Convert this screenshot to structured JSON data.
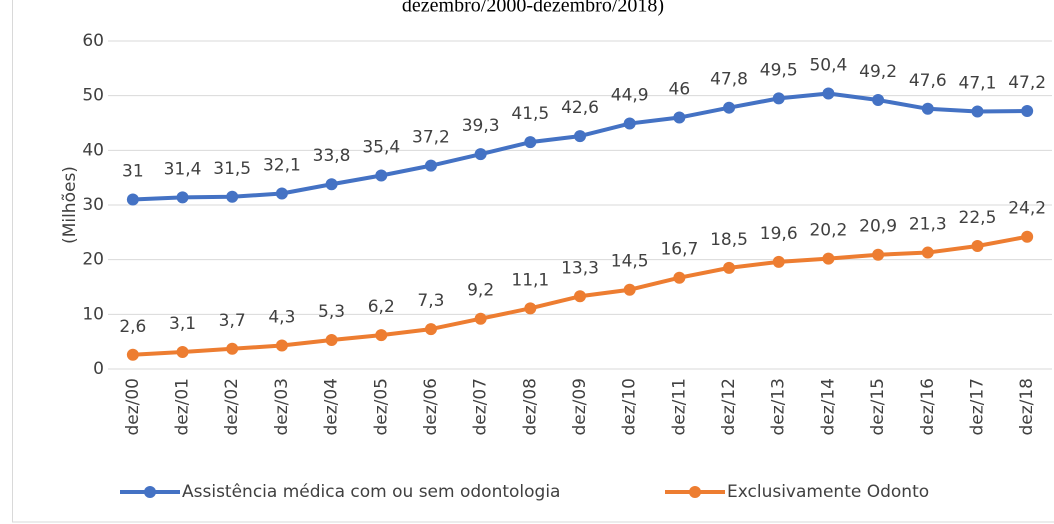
{
  "chart_data": {
    "type": "line",
    "title": "dezembro/2000-dezembro/2018)",
    "ylabel": "(Milhões)",
    "categories": [
      "dez/00",
      "dez/01",
      "dez/02",
      "dez/03",
      "dez/04",
      "dez/05",
      "dez/06",
      "dez/07",
      "dez/08",
      "dez/09",
      "dez/10",
      "dez/11",
      "dez/12",
      "dez/13",
      "dez/14",
      "dez/15",
      "dez/16",
      "dez/17",
      "dez/18"
    ],
    "series": [
      {
        "name": "Assistência médica com ou sem odontologia",
        "color": "#4472c4",
        "values": [
          31,
          31.4,
          31.5,
          32.1,
          33.8,
          35.4,
          37.2,
          39.3,
          41.5,
          42.6,
          44.9,
          46,
          47.8,
          49.5,
          50.4,
          49.2,
          47.6,
          47.1,
          47.2
        ],
        "value_labels": [
          "31",
          "31,4",
          "31,5",
          "32,1",
          "33,8",
          "35,4",
          "37,2",
          "39,3",
          "41,5",
          "42,6",
          "44,9",
          "46",
          "47,8",
          "49,5",
          "50,4",
          "49,2",
          "47,6",
          "47,1",
          "47,2"
        ]
      },
      {
        "name": "Exclusivamente Odonto",
        "color": "#ed7d31",
        "values": [
          2.6,
          3.1,
          3.7,
          4.3,
          5.3,
          6.2,
          7.3,
          9.2,
          11.1,
          13.3,
          14.5,
          16.7,
          18.5,
          19.6,
          20.2,
          20.9,
          21.3,
          22.5,
          24.2
        ],
        "value_labels": [
          "2,6",
          "3,1",
          "3,7",
          "4,3",
          "5,3",
          "6,2",
          "7,3",
          "9,2",
          "11,1",
          "13,3",
          "14,5",
          "16,7",
          "18,5",
          "19,6",
          "20,2",
          "20,9",
          "21,3",
          "22,5",
          "24,2"
        ]
      }
    ],
    "ylim": [
      0,
      60
    ],
    "yticks": [
      0,
      10,
      20,
      30,
      40,
      50,
      60
    ],
    "grid": true,
    "legend": "bottom"
  }
}
